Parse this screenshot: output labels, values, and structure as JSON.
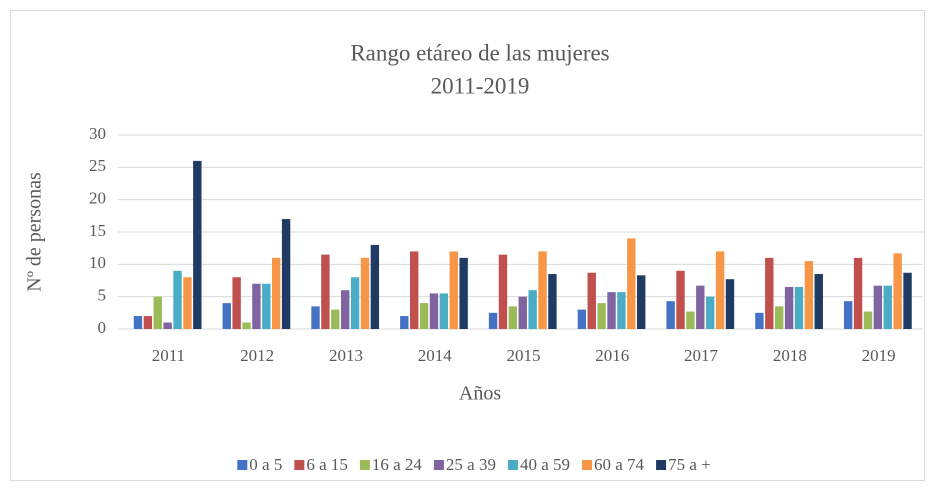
{
  "chart_data": {
    "type": "bar",
    "title": [
      "Rango etáreo de las mujeres",
      "2011-2019"
    ],
    "x_label": "Años",
    "y_label": "Nº de personas",
    "categories": [
      "2011",
      "2012",
      "2013",
      "2014",
      "2015",
      "2016",
      "2017",
      "2018",
      "2019"
    ],
    "series": [
      {
        "name": "0 a 5",
        "color": "#4472c4",
        "values": [
          2,
          4,
          3.5,
          2,
          2.5,
          3,
          4.3,
          2.5,
          4.3
        ]
      },
      {
        "name": "6 a 15",
        "color": "#c0504d",
        "values": [
          2,
          8,
          11.5,
          12,
          11.5,
          8.7,
          9,
          11,
          11
        ]
      },
      {
        "name": "16 a 24",
        "color": "#9bbb59",
        "values": [
          5,
          1,
          3,
          4,
          3.5,
          4,
          2.7,
          3.5,
          2.7
        ]
      },
      {
        "name": "25 a 39",
        "color": "#8064a2",
        "values": [
          1,
          7,
          6,
          5.5,
          5,
          5.7,
          6.7,
          6.5,
          6.7
        ]
      },
      {
        "name": "40 a 59",
        "color": "#4bacc6",
        "values": [
          9,
          7,
          8,
          5.5,
          6,
          5.7,
          5,
          6.5,
          6.7
        ]
      },
      {
        "name": "60 a 74",
        "color": "#f79646",
        "values": [
          8,
          11,
          11,
          12,
          12,
          14,
          12,
          10.5,
          11.7
        ]
      },
      {
        "name": "75 a +",
        "color": "#1f3b63",
        "values": [
          26,
          17,
          13,
          11,
          8.5,
          8.3,
          7.7,
          8.5,
          8.7
        ]
      }
    ],
    "ylim": [
      0,
      30
    ],
    "yticks": [
      0,
      5,
      10,
      15,
      20,
      25,
      30
    ],
    "grid": true,
    "legend": "bottom"
  }
}
